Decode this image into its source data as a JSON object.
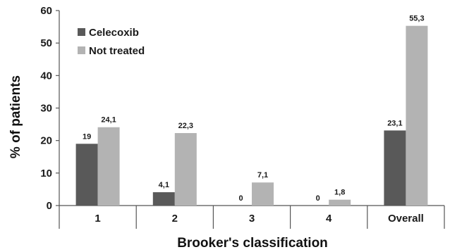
{
  "chart_data": {
    "type": "bar",
    "categories": [
      "1",
      "2",
      "3",
      "4",
      "Overall"
    ],
    "series": [
      {
        "name": "Celecoxib",
        "values": [
          19,
          4.1,
          0,
          0,
          23.1
        ],
        "value_labels": [
          "19",
          "4,1",
          "0",
          "0",
          "23,1"
        ],
        "color": "#595959"
      },
      {
        "name": "Not treated",
        "values": [
          24.1,
          22.3,
          7.1,
          1.8,
          55.3
        ],
        "value_labels": [
          "24,1",
          "22,3",
          "7,1",
          "1,8",
          "55,3"
        ],
        "color": "#b3b3b3"
      }
    ],
    "title": "",
    "xlabel": "Brooker's classification",
    "ylabel": "% of patients",
    "ylim": [
      0,
      60
    ],
    "yticks": [
      "0",
      "10",
      "20",
      "30",
      "40",
      "50",
      "60"
    ],
    "grid": false,
    "legend_position": "top-left"
  }
}
